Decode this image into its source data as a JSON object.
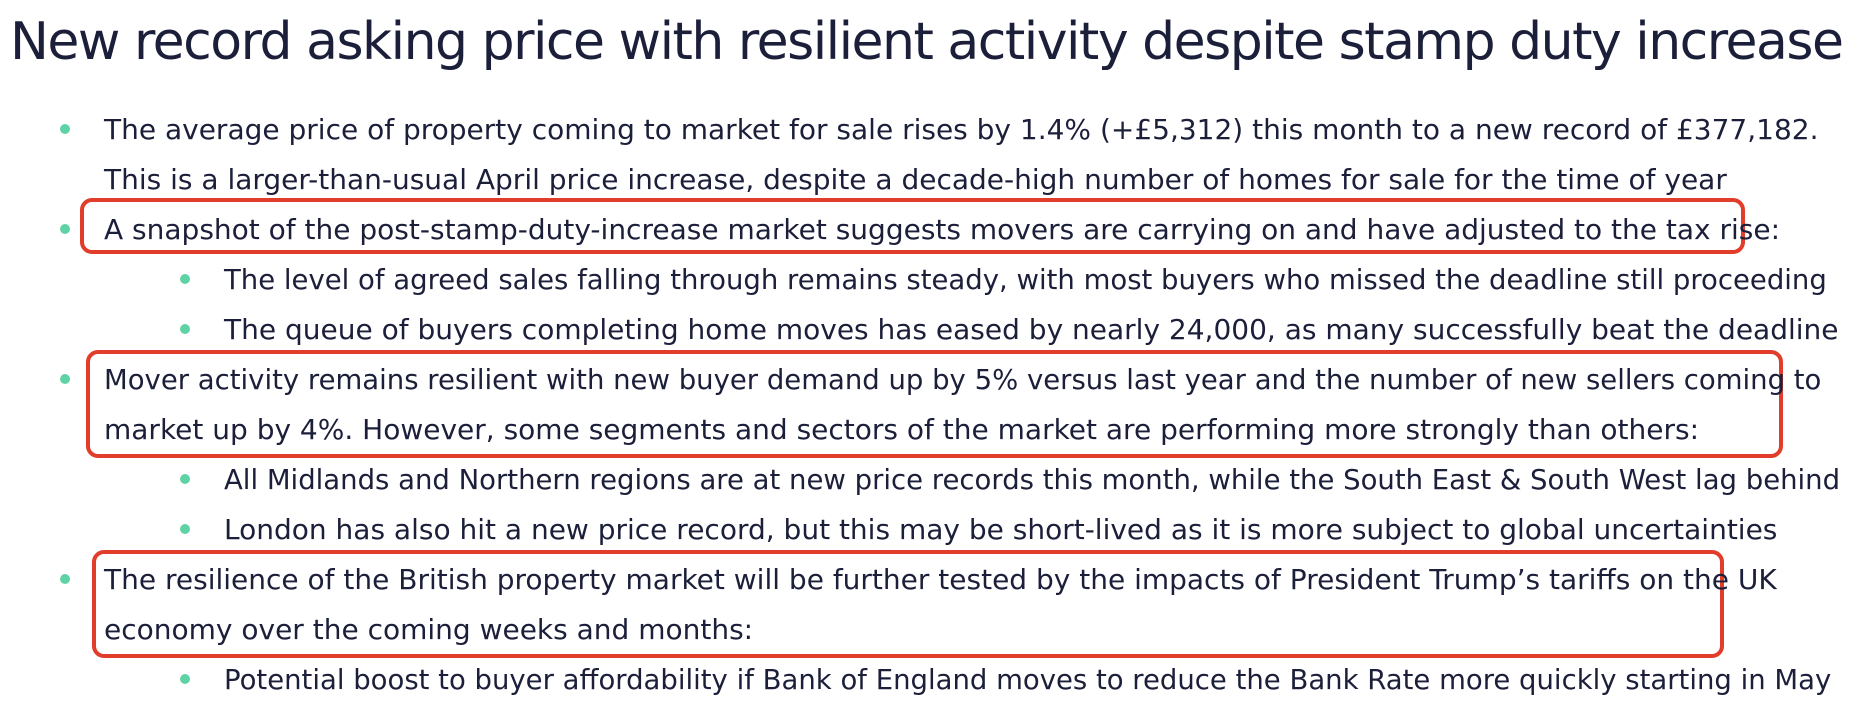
{
  "title": "New record asking price with resilient activity despite stamp duty increase",
  "bullets": [
    {
      "lines": [
        "The average price of property coming to market for sale rises by 1.4% (+£5,312) this month to a new record of £377,182.",
        "This is a larger-than-usual April price increase, despite a decade-high number of homes for sale for the time of year"
      ]
    },
    {
      "lines": [
        "A snapshot of the post-stamp-duty-increase market suggests movers are carrying on and have adjusted to the tax rise:"
      ],
      "sub": [
        "The level of agreed sales falling through remains steady, with most buyers who missed the deadline still proceeding",
        "The queue of buyers completing home moves has eased by nearly 24,000, as many successfully beat the deadline"
      ]
    },
    {
      "lines": [
        "Mover activity remains resilient with new buyer demand up by 5% versus last year and the number of new sellers coming to",
        "market up by 4%. However, some segments and sectors of the market are performing more strongly than others:"
      ],
      "sub": [
        "All Midlands and Northern regions are at new price records this month, while the South East & South West lag behind",
        "London has also hit a new price record, but this may be short-lived  as it is more subject to global uncertainties"
      ]
    },
    {
      "lines": [
        "The resilience of the British property market will be further tested by the impacts of President Trump’s tariffs on the UK",
        "economy over the coming weeks and months:"
      ],
      "sub": [
        "Potential boost to buyer affordability if Bank of England moves to reduce the Bank Rate more quickly starting in May"
      ]
    }
  ],
  "colors": {
    "text": "#1c1f3a",
    "bullet": "#5fd3a6",
    "highlight": "#e23c2a"
  }
}
